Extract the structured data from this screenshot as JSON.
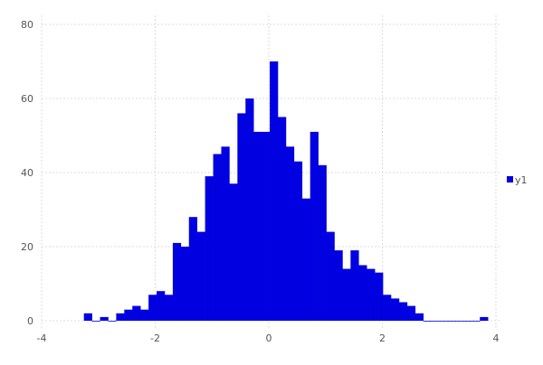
{
  "chart_data": {
    "type": "bar",
    "subtype": "histogram",
    "title": "",
    "xlabel": "",
    "ylabel": "",
    "xlim": [
      -4,
      4
    ],
    "ylim": [
      0,
      80
    ],
    "xticks": [
      -4,
      -2,
      0,
      2,
      4
    ],
    "yticks": [
      0,
      20,
      40,
      60,
      80
    ],
    "grid": true,
    "legend_position": "right",
    "bin_start": -3.256,
    "bin_width": 0.1423,
    "series": [
      {
        "name": "y1",
        "color": "#0000e0",
        "values": [
          2,
          0,
          1,
          0,
          2,
          3,
          4,
          3,
          7,
          8,
          7,
          21,
          20,
          28,
          24,
          39,
          45,
          47,
          37,
          56,
          60,
          51,
          51,
          70,
          55,
          47,
          43,
          33,
          51,
          42,
          24,
          19,
          14,
          19,
          15,
          14,
          13,
          7,
          6,
          5,
          4,
          2,
          0,
          0,
          0,
          0,
          0,
          0,
          0,
          1
        ]
      }
    ]
  }
}
